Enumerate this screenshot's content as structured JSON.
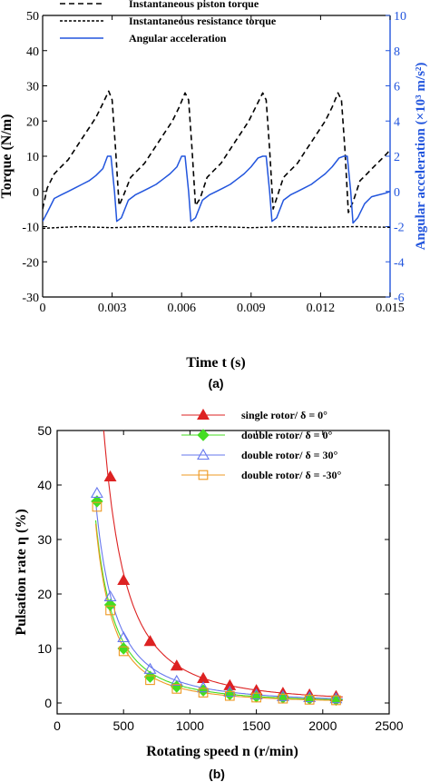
{
  "colors": {
    "axis": "#000000",
    "blue": "#2255dd",
    "red": "#dd2222",
    "green": "#44dd22",
    "light_blue": "#6677ee",
    "orange": "#ee9922"
  },
  "chart_data": [
    {
      "type": "line",
      "caption": "(a)",
      "xlabel": "Time t (s)",
      "ylabel": "Torque (N/m)",
      "y2label": "Angular acceleration (×10³ m/s²)",
      "xlim": [
        0,
        0.015
      ],
      "ylim": [
        -30,
        50
      ],
      "y2lim": [
        -6,
        10
      ],
      "xticks": [
        "0",
        "0.003",
        "0.006",
        "0.009",
        "0.012",
        "0.015"
      ],
      "yticks": [
        "-30",
        "-20",
        "-10",
        "0",
        "10",
        "20",
        "30",
        "40",
        "50"
      ],
      "y2ticks": [
        "-6",
        "-4",
        "-2",
        "0",
        "2",
        "4",
        "6",
        "8",
        "10"
      ],
      "legend_position": "top-left",
      "series": [
        {
          "name": "Instantaneous piston torque",
          "style": "dashed",
          "axis": "left",
          "x": [
            0,
            0.0002,
            0.0005,
            0.0008,
            0.0011,
            0.0014,
            0.0017,
            0.002,
            0.0023,
            0.0026,
            0.00285,
            0.003,
            0.00315,
            0.0033,
            0.0035,
            0.0038,
            0.0041,
            0.0044,
            0.0047,
            0.005,
            0.0053,
            0.0056,
            0.0059,
            0.00615,
            0.0063,
            0.00645,
            0.0066,
            0.0068,
            0.0071,
            0.0074,
            0.0077,
            0.008,
            0.0083,
            0.0086,
            0.0089,
            0.0092,
            0.0095,
            0.00965,
            0.0098,
            0.00995,
            0.0101,
            0.0104,
            0.0107,
            0.011,
            0.0113,
            0.0116,
            0.0119,
            0.0122,
            0.0125,
            0.01275,
            0.0129,
            0.01305,
            0.0132,
            0.0134,
            0.0137,
            0.014,
            0.0143,
            0.0146,
            0.0149,
            0.015
          ],
          "values": [
            -5,
            1,
            5,
            7,
            9,
            12,
            15,
            18,
            21,
            25,
            28.5,
            26,
            12,
            -4,
            -1,
            4,
            6,
            8,
            11,
            14,
            17,
            20,
            24,
            28,
            26,
            12,
            -4,
            -2,
            4,
            6,
            8,
            11,
            14,
            17,
            20,
            24,
            28,
            26,
            12,
            -5,
            -2,
            4,
            6,
            8,
            11,
            14,
            17,
            20,
            24,
            28,
            26,
            12,
            -6,
            -3,
            3,
            5,
            7,
            9,
            11,
            12
          ]
        },
        {
          "name": "Instantaneous resistance torque",
          "style": "dotted",
          "axis": "left",
          "x": [
            0,
            0.0015,
            0.003,
            0.0045,
            0.006,
            0.0075,
            0.009,
            0.0105,
            0.012,
            0.0135,
            0.015
          ],
          "values": [
            -10.5,
            -10,
            -10.3,
            -10,
            -10.2,
            -10,
            -10.3,
            -10,
            -10.2,
            -10,
            -10.2
          ]
        },
        {
          "name": "Angular acceleration",
          "style": "solid",
          "axis": "right",
          "x": [
            0,
            0.0002,
            0.0005,
            0.0008,
            0.0011,
            0.0014,
            0.0017,
            0.002,
            0.0023,
            0.0026,
            0.0028,
            0.00295,
            0.0031,
            0.0032,
            0.0034,
            0.0037,
            0.004,
            0.0043,
            0.0046,
            0.0049,
            0.0052,
            0.0055,
            0.0058,
            0.006,
            0.00615,
            0.0063,
            0.0064,
            0.0066,
            0.0069,
            0.0072,
            0.0075,
            0.0078,
            0.0081,
            0.0084,
            0.0087,
            0.009,
            0.0093,
            0.0095,
            0.00965,
            0.0098,
            0.0099,
            0.0101,
            0.0104,
            0.0107,
            0.011,
            0.0113,
            0.0116,
            0.0119,
            0.0122,
            0.0125,
            0.0128,
            0.013,
            0.01315,
            0.0133,
            0.0134,
            0.0136,
            0.0139,
            0.0142,
            0.0145,
            0.0148,
            0.015
          ],
          "values": [
            -1.7,
            -1.2,
            -0.4,
            -0.2,
            0,
            0.2,
            0.4,
            0.6,
            0.9,
            1.3,
            2,
            2,
            0,
            -1.7,
            -1.5,
            -0.5,
            -0.2,
            0,
            0.2,
            0.4,
            0.7,
            1,
            1.4,
            2,
            2,
            0,
            -1.7,
            -1.5,
            -0.5,
            -0.2,
            0,
            0.2,
            0.4,
            0.7,
            1,
            1.4,
            1.9,
            2,
            2,
            0,
            -1.7,
            -1.5,
            -0.5,
            -0.2,
            0,
            0.2,
            0.4,
            0.7,
            1,
            1.4,
            1.9,
            2,
            2,
            0,
            -1.8,
            -1.5,
            -0.7,
            -0.3,
            -0.2,
            -0.1,
            0
          ]
        }
      ]
    },
    {
      "type": "line",
      "caption": "(b)",
      "xlabel": "Rotating speed n (r/min)",
      "ylabel": "Pulsation rate η (%)",
      "xlim": [
        0,
        2500
      ],
      "ylim": [
        -2,
        50
      ],
      "xticks": [
        "0",
        "500",
        "1000",
        "1500",
        "2000",
        "2500"
      ],
      "yticks": [
        "0",
        "10",
        "20",
        "30",
        "40",
        "50"
      ],
      "legend_position": "top-right",
      "series": [
        {
          "name": "single rotor/ δ = 0°",
          "marker": "triangle-filled",
          "x": [
            400,
            500,
            700,
            900,
            1100,
            1300,
            1500,
            1700,
            1900,
            2100
          ],
          "values": [
            41.5,
            22.5,
            11.3,
            6.8,
            4.5,
            3.2,
            2.3,
            1.8,
            1.5,
            1.2
          ]
        },
        {
          "name": "double rotor/ δ = 0°",
          "marker": "diamond-filled",
          "x": [
            300,
            400,
            500,
            700,
            900,
            1100,
            1300,
            1500,
            1700,
            1900,
            2100
          ],
          "values": [
            37,
            18,
            10,
            4.8,
            3,
            2.3,
            1.6,
            1.2,
            1,
            0.8,
            0.6
          ]
        },
        {
          "name": "double rotor/ δ = 30°",
          "marker": "triangle-open",
          "x": [
            300,
            400,
            500,
            700,
            900,
            1100,
            1300,
            1500,
            1700,
            1900,
            2100
          ],
          "values": [
            38.5,
            19.5,
            12,
            6.2,
            4,
            2.8,
            2,
            1.5,
            1.2,
            1,
            0.8
          ]
        },
        {
          "name": "double rotor/ δ = -30°",
          "marker": "square-open",
          "x": [
            300,
            400,
            500,
            700,
            900,
            1100,
            1300,
            1500,
            1700,
            1900,
            2100
          ],
          "values": [
            36,
            17,
            9.5,
            4.2,
            2.6,
            1.9,
            1.3,
            1,
            0.8,
            0.6,
            0.5
          ]
        }
      ]
    }
  ]
}
